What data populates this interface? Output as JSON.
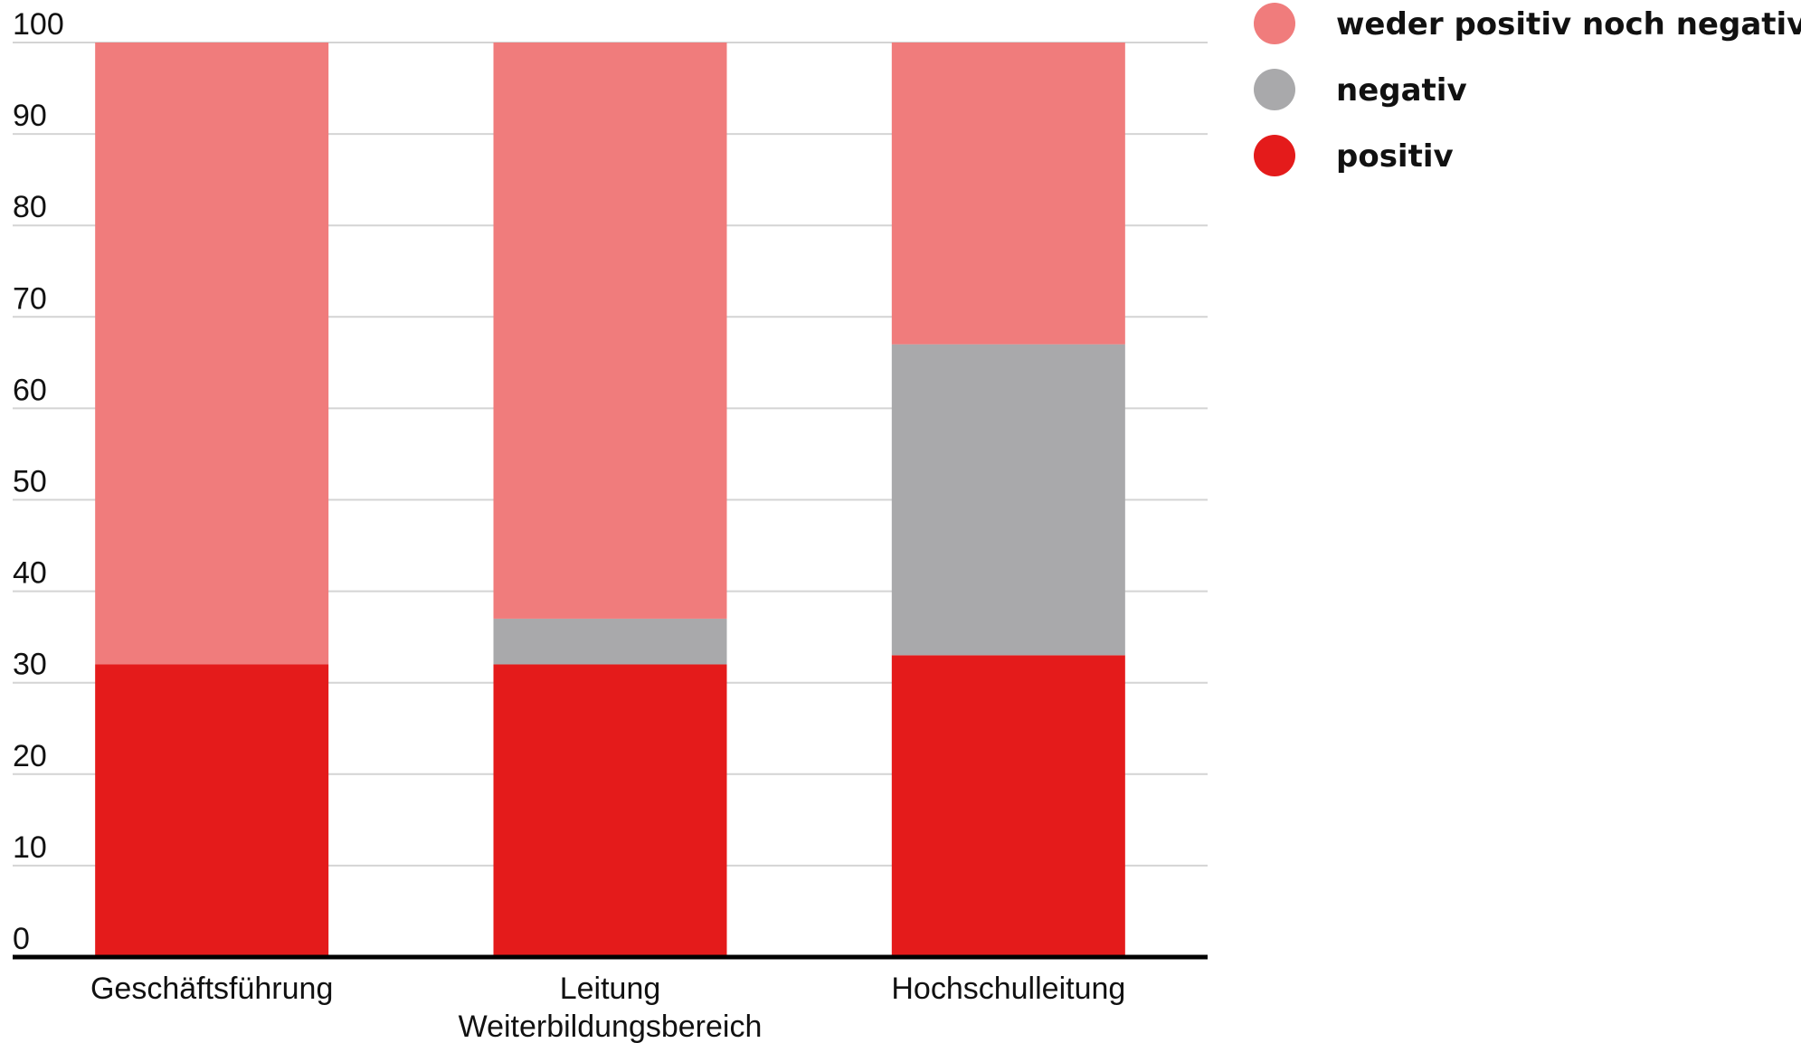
{
  "chart_data": {
    "type": "bar",
    "stacked": true,
    "categories": [
      [
        "Geschäftsführung"
      ],
      [
        "Leitung",
        "Weiterbildungsbereich"
      ],
      [
        "Hochschulleitung"
      ]
    ],
    "series": [
      {
        "name": "positiv",
        "color": "#e41b1b",
        "values": [
          32,
          32,
          33
        ]
      },
      {
        "name": "negativ",
        "color": "#a9a9ab",
        "values": [
          0,
          5,
          34
        ]
      },
      {
        "name": "weder positiv noch negativ",
        "color": "#f07c7c",
        "values": [
          68,
          63,
          33
        ]
      }
    ],
    "legend_order": [
      "weder positiv noch negativ",
      "negativ",
      "positiv"
    ],
    "legend_position": "top-right",
    "ylim": [
      0,
      100
    ],
    "yticks": [
      "0",
      "10",
      "20",
      "30",
      "40",
      "50",
      "60",
      "70",
      "80",
      "90",
      "100"
    ],
    "grid": true,
    "title": "",
    "xlabel": "",
    "ylabel": ""
  }
}
